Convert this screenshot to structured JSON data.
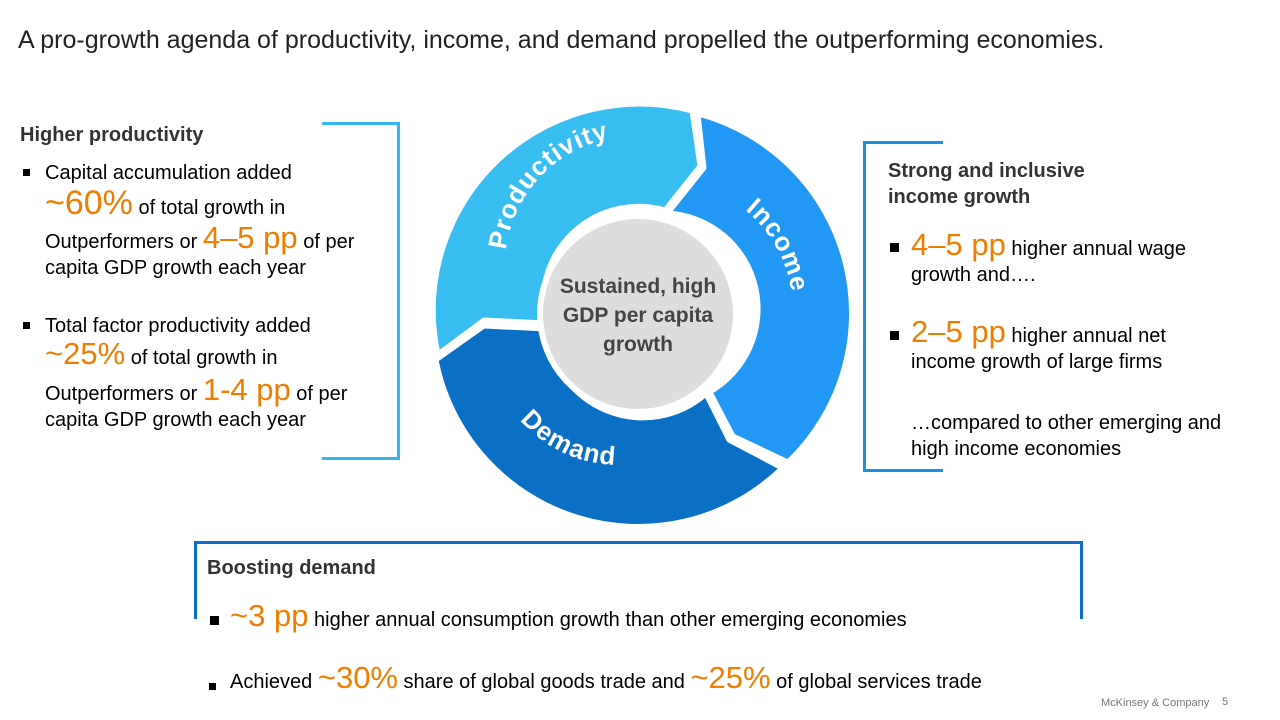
{
  "title": "A pro-growth agenda of productivity, income, and demand propelled the outperforming economies.",
  "productivity": {
    "heading": "Higher productivity",
    "bullet1": {
      "line1": "Capital accumulation added",
      "value1": "~60%",
      "line2": " of total growth in",
      "line3": "Outperformers or ",
      "value2": "4–5 pp",
      "line4": " of per",
      "line5": "capita GDP growth each year"
    },
    "bullet2": {
      "line1": "Total factor productivity added",
      "value1": "~25%",
      "line2": " of total growth in",
      "line3": "Outperformers or ",
      "value2": "1-4 pp",
      "line4": " of per",
      "line5": "capita GDP growth each year"
    }
  },
  "wheel": {
    "center_line1": "Sustained, high",
    "center_line2": "GDP per capita",
    "center_line3": "growth",
    "segment_productivity": "Productivity",
    "segment_income": "Income",
    "segment_demand": "Demand",
    "colors": {
      "productivity": "#38bdf1",
      "income": "#2198f3",
      "demand": "#0a70c6",
      "center": "#dddddd"
    }
  },
  "income": {
    "heading_line1": "Strong and inclusive",
    "heading_line2": "income growth",
    "bullet1": {
      "value": "4–5 pp",
      "text1": " higher annual wage",
      "text2": "growth and…."
    },
    "bullet2": {
      "value": "2–5 pp",
      "text1": " higher annual net",
      "text2": "income growth of large firms"
    },
    "note_line1": "…compared to other emerging and",
    "note_line2": "high income economies"
  },
  "demand": {
    "heading": "Boosting demand",
    "bullet1": {
      "value": "~3 pp",
      "text": " higher annual consumption growth than other emerging economies"
    },
    "bullet2": {
      "prefix": "Achieved ",
      "value1": "~30%",
      "mid": " share of global goods trade and ",
      "value2": "~25%",
      "suffix": " of global services trade"
    }
  },
  "footer": {
    "company": "McKinsey & Company",
    "page": "5"
  }
}
